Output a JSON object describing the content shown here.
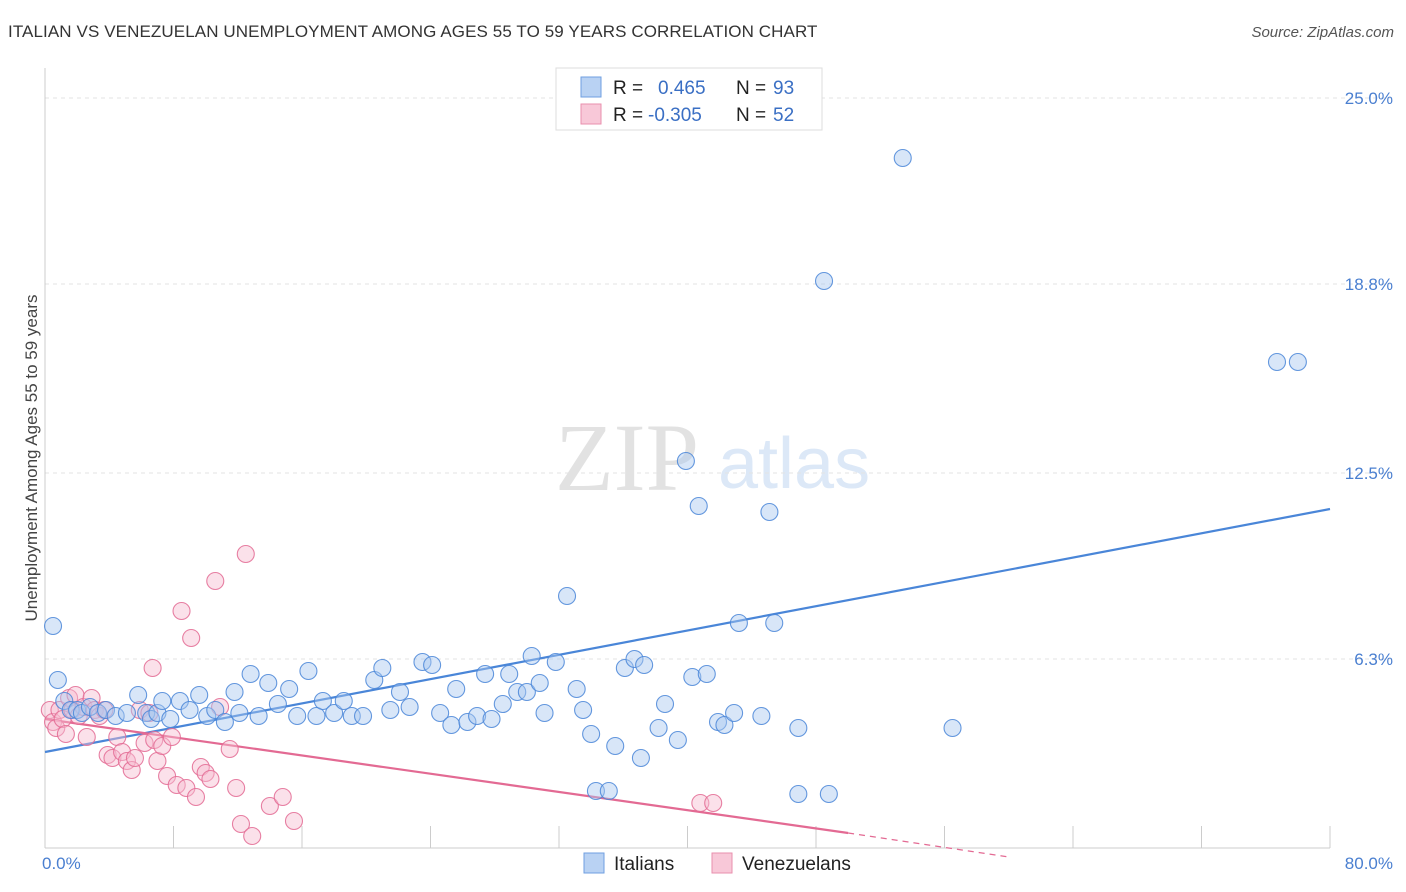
{
  "title": "ITALIAN VS VENEZUELAN UNEMPLOYMENT AMONG AGES 55 TO 59 YEARS CORRELATION CHART",
  "source": "Source: ZipAtlas.com",
  "watermark": {
    "zip": "ZIP",
    "atlas": "atlas"
  },
  "legend": {
    "rows": [
      {
        "r_label": "R =",
        "r_value": "0.465",
        "n_label": "N =",
        "n_value": "93",
        "color": "#8fb6ea"
      },
      {
        "r_label": "R =",
        "r_value": "-0.305",
        "n_label": "N =",
        "n_value": "52",
        "color": "#f2a6bf"
      }
    ]
  },
  "bottom_legend": [
    {
      "label": "Italians",
      "color": "#8fb6ea"
    },
    {
      "label": "Venezuelans",
      "color": "#f2a6bf"
    }
  ],
  "chart_data": {
    "type": "scatter",
    "title": "ITALIAN VS VENEZUELAN UNEMPLOYMENT AMONG AGES 55 TO 59 YEARS CORRELATION CHART",
    "xlabel": "",
    "ylabel": "Unemployment Among Ages 55 to 59 years",
    "xlim": [
      0,
      80
    ],
    "ylim": [
      0,
      25
    ],
    "x_tick_labels": [
      "0.0%",
      "80.0%"
    ],
    "y_ticks": [
      6.3,
      12.5,
      18.8,
      25.0
    ],
    "y_tick_labels": [
      "6.3%",
      "12.5%",
      "18.8%",
      "25.0%"
    ],
    "grid": true,
    "legend_position": "top-center",
    "series": [
      {
        "name": "Italians",
        "color": "#4a86d8",
        "fill": "#a9c8f0",
        "trend": {
          "x": [
            0,
            80
          ],
          "y": [
            3.2,
            11.3
          ]
        },
        "points": [
          [
            0.5,
            7.4
          ],
          [
            0.8,
            5.6
          ],
          [
            1.2,
            4.9
          ],
          [
            1.6,
            4.6
          ],
          [
            2.0,
            4.6
          ],
          [
            2.3,
            4.5
          ],
          [
            2.8,
            4.7
          ],
          [
            3.3,
            4.5
          ],
          [
            3.8,
            4.6
          ],
          [
            4.4,
            4.4
          ],
          [
            5.1,
            4.5
          ],
          [
            5.8,
            5.1
          ],
          [
            6.3,
            4.5
          ],
          [
            6.6,
            4.3
          ],
          [
            7.0,
            4.5
          ],
          [
            7.3,
            4.9
          ],
          [
            7.8,
            4.3
          ],
          [
            8.4,
            4.9
          ],
          [
            9.0,
            4.6
          ],
          [
            9.6,
            5.1
          ],
          [
            10.1,
            4.4
          ],
          [
            10.6,
            4.6
          ],
          [
            11.2,
            4.2
          ],
          [
            11.8,
            5.2
          ],
          [
            12.1,
            4.5
          ],
          [
            12.8,
            5.8
          ],
          [
            13.3,
            4.4
          ],
          [
            13.9,
            5.5
          ],
          [
            14.5,
            4.8
          ],
          [
            15.2,
            5.3
          ],
          [
            15.7,
            4.4
          ],
          [
            16.4,
            5.9
          ],
          [
            16.9,
            4.4
          ],
          [
            17.3,
            4.9
          ],
          [
            18.0,
            4.5
          ],
          [
            18.6,
            4.9
          ],
          [
            19.1,
            4.4
          ],
          [
            19.8,
            4.4
          ],
          [
            20.5,
            5.6
          ],
          [
            21.0,
            6.0
          ],
          [
            21.5,
            4.6
          ],
          [
            22.1,
            5.2
          ],
          [
            22.7,
            4.7
          ],
          [
            23.5,
            6.2
          ],
          [
            24.1,
            6.1
          ],
          [
            24.6,
            4.5
          ],
          [
            25.3,
            4.1
          ],
          [
            25.6,
            5.3
          ],
          [
            26.3,
            4.2
          ],
          [
            26.9,
            4.4
          ],
          [
            27.4,
            5.8
          ],
          [
            27.8,
            4.3
          ],
          [
            28.5,
            4.8
          ],
          [
            28.9,
            5.8
          ],
          [
            29.4,
            5.2
          ],
          [
            30.0,
            5.2
          ],
          [
            30.3,
            6.4
          ],
          [
            30.8,
            5.5
          ],
          [
            31.1,
            4.5
          ],
          [
            31.8,
            6.2
          ],
          [
            32.5,
            8.4
          ],
          [
            33.1,
            5.3
          ],
          [
            33.5,
            4.6
          ],
          [
            34.0,
            3.8
          ],
          [
            34.3,
            1.9
          ],
          [
            35.1,
            1.9
          ],
          [
            35.5,
            3.4
          ],
          [
            36.1,
            6.0
          ],
          [
            36.7,
            6.3
          ],
          [
            37.3,
            6.1
          ],
          [
            37.1,
            3.0
          ],
          [
            38.2,
            4.0
          ],
          [
            38.6,
            4.8
          ],
          [
            39.4,
            3.6
          ],
          [
            39.9,
            12.9
          ],
          [
            40.3,
            5.7
          ],
          [
            40.7,
            11.4
          ],
          [
            41.2,
            5.8
          ],
          [
            41.9,
            4.2
          ],
          [
            42.3,
            4.1
          ],
          [
            42.9,
            4.5
          ],
          [
            43.2,
            7.5
          ],
          [
            44.6,
            4.4
          ],
          [
            45.1,
            11.2
          ],
          [
            45.4,
            7.5
          ],
          [
            46.9,
            4.0
          ],
          [
            46.9,
            1.8
          ],
          [
            48.5,
            18.9
          ],
          [
            48.8,
            1.8
          ],
          [
            53.4,
            23.0
          ],
          [
            56.5,
            4.0
          ],
          [
            76.7,
            16.2
          ],
          [
            78.0,
            16.2
          ]
        ]
      },
      {
        "name": "Venezuelans",
        "color": "#e36a93",
        "fill": "#f6bcd0",
        "trend": {
          "x": [
            0,
            50
          ],
          "y": [
            4.3,
            0.5
          ]
        },
        "trend_dashed": {
          "x": [
            50,
            60
          ],
          "y": [
            0.5,
            -0.3
          ]
        },
        "points": [
          [
            0.3,
            4.6
          ],
          [
            0.5,
            4.2
          ],
          [
            0.7,
            4.0
          ],
          [
            0.9,
            4.6
          ],
          [
            1.1,
            4.3
          ],
          [
            1.3,
            3.8
          ],
          [
            1.5,
            5.0
          ],
          [
            1.7,
            4.6
          ],
          [
            1.9,
            5.1
          ],
          [
            2.1,
            4.4
          ],
          [
            2.4,
            4.7
          ],
          [
            2.6,
            3.7
          ],
          [
            2.9,
            5.0
          ],
          [
            3.1,
            4.6
          ],
          [
            3.4,
            4.4
          ],
          [
            3.7,
            4.6
          ],
          [
            3.9,
            3.1
          ],
          [
            4.2,
            3.0
          ],
          [
            4.5,
            3.7
          ],
          [
            4.8,
            3.2
          ],
          [
            5.1,
            2.9
          ],
          [
            5.4,
            2.6
          ],
          [
            5.6,
            3.0
          ],
          [
            5.9,
            4.6
          ],
          [
            6.2,
            3.5
          ],
          [
            6.5,
            4.5
          ],
          [
            6.8,
            3.6
          ],
          [
            7.0,
            2.9
          ],
          [
            7.3,
            3.4
          ],
          [
            7.6,
            2.4
          ],
          [
            7.9,
            3.7
          ],
          [
            8.2,
            2.1
          ],
          [
            8.5,
            7.9
          ],
          [
            8.8,
            2.0
          ],
          [
            9.1,
            7.0
          ],
          [
            9.4,
            1.7
          ],
          [
            9.7,
            2.7
          ],
          [
            10.0,
            2.5
          ],
          [
            10.3,
            2.3
          ],
          [
            10.6,
            8.9
          ],
          [
            10.9,
            4.7
          ],
          [
            11.5,
            3.3
          ],
          [
            11.9,
            2.0
          ],
          [
            12.2,
            0.8
          ],
          [
            12.5,
            9.8
          ],
          [
            12.9,
            0.4
          ],
          [
            14.0,
            1.4
          ],
          [
            14.8,
            1.7
          ],
          [
            15.5,
            0.9
          ],
          [
            40.8,
            1.5
          ],
          [
            41.6,
            1.5
          ],
          [
            6.7,
            6.0
          ]
        ]
      }
    ]
  }
}
